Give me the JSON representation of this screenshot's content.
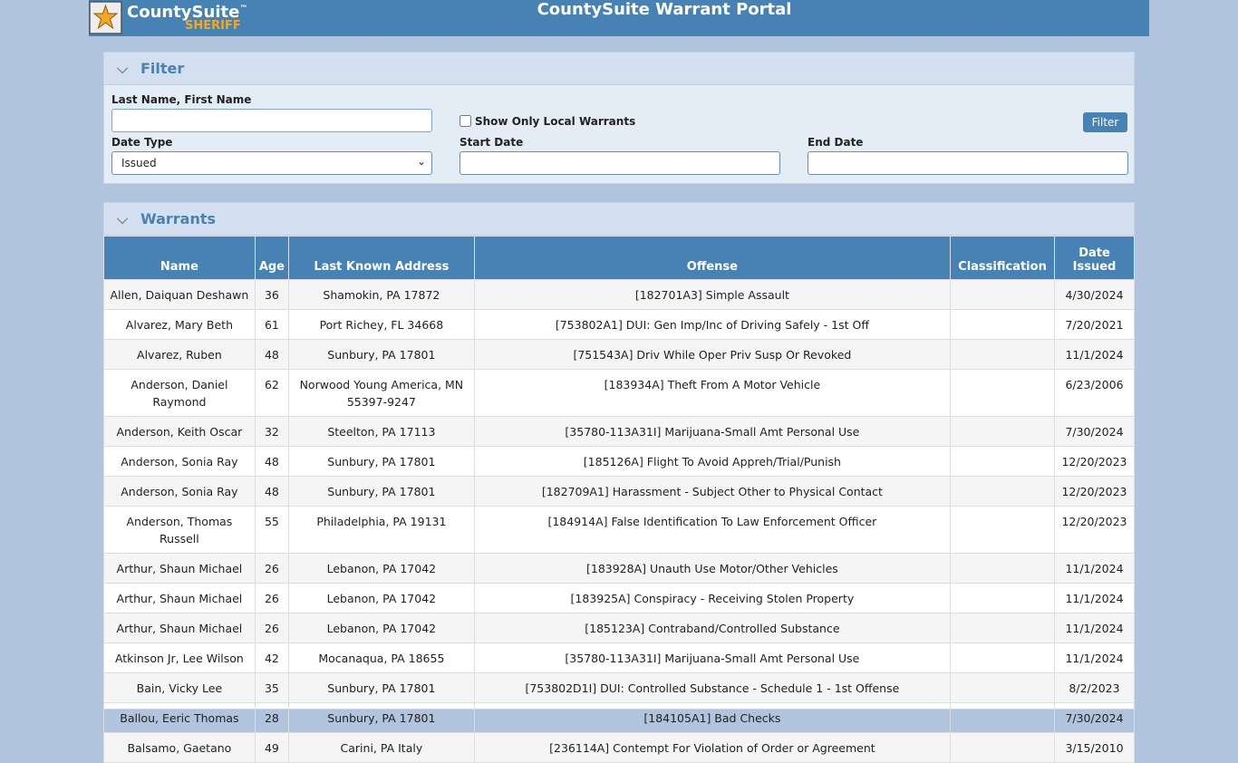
{
  "header": {
    "logo": {
      "name": "CountySuite",
      "mark": "™",
      "sub": "SHERIFF"
    },
    "title": "CountySuite Warrant Portal"
  },
  "filter": {
    "title": "Filter",
    "name_label": "Last Name, First Name",
    "local_label": "Show Only Local Warrants",
    "button": "Filter",
    "date_type_label": "Date Type",
    "date_type_value": "Issued",
    "start_label": "Start Date",
    "end_label": "End Date"
  },
  "warrants": {
    "title": "Warrants",
    "columns": [
      "Name",
      "Age",
      "Last Known Address",
      "Offense",
      "Classification",
      "Date Issued"
    ],
    "rows": [
      [
        "Allen, Daiquan Deshawn",
        36,
        "Shamokin, PA 17872",
        "[182701A3] Simple Assault",
        "",
        "4/30/2024"
      ],
      [
        "Alvarez, Mary Beth",
        61,
        "Port Richey, FL 34668",
        "[753802A1] DUI: Gen Imp/Inc of Driving Safely - 1st Off",
        "",
        "7/20/2021"
      ],
      [
        "Alvarez, Ruben",
        48,
        "Sunbury, PA 17801",
        "[751543A] Driv While Oper Priv Susp Or Revoked",
        "",
        "11/1/2024"
      ],
      [
        "Anderson, Daniel Raymond",
        62,
        "Norwood Young America, MN 55397-9247",
        "[183934A] Theft From A Motor Vehicle",
        "",
        "6/23/2006"
      ],
      [
        "Anderson, Keith Oscar",
        32,
        "Steelton, PA 17113",
        "[35780-113A31I] Marijuana-Small Amt Personal Use",
        "",
        "7/30/2024"
      ],
      [
        "Anderson, Sonia Ray",
        48,
        "Sunbury, PA 17801",
        "[185126A] Flight To Avoid Appreh/Trial/Punish",
        "",
        "12/20/2023"
      ],
      [
        "Anderson, Sonia Ray",
        48,
        "Sunbury, PA 17801",
        "[182709A1] Harassment - Subject Other to Physical Contact",
        "",
        "12/20/2023"
      ],
      [
        "Anderson, Thomas Russell",
        55,
        "Philadelphia, PA 19131",
        "[184914A] False Identification To Law Enforcement Officer",
        "",
        "12/20/2023"
      ],
      [
        "Arthur, Shaun Michael",
        26,
        "Lebanon, PA 17042",
        "[183928A] Unauth Use Motor/Other Vehicles",
        "",
        "11/1/2024"
      ],
      [
        "Arthur, Shaun Michael",
        26,
        "Lebanon, PA 17042",
        "[183925A] Conspiracy - Receiving Stolen Property",
        "",
        "11/1/2024"
      ],
      [
        "Arthur, Shaun Michael",
        26,
        "Lebanon, PA 17042",
        "[185123A] Contraband/Controlled Substance",
        "",
        "11/1/2024"
      ],
      [
        "Atkinson Jr, Lee Wilson",
        42,
        "Mocanaqua, PA 18655",
        "[35780-113A31I] Marijuana-Small Amt Personal Use",
        "",
        "11/1/2024"
      ],
      [
        "Bain, Vicky Lee",
        35,
        "Sunbury, PA 17801",
        "[753802D1I] DUI: Controlled Substance - Schedule 1 - 1st Offense",
        "",
        "8/2/2023"
      ],
      [
        "Ballou, Eeric Thomas",
        28,
        "Sunbury, PA 17801",
        "[184105A1] Bad Checks",
        "",
        "7/30/2024"
      ],
      [
        "Balsamo, Gaetano",
        49,
        "Carini, PA Italy",
        "[236114A] Contempt For Violation of Order or Agreement",
        "",
        "3/15/2010"
      ]
    ]
  }
}
